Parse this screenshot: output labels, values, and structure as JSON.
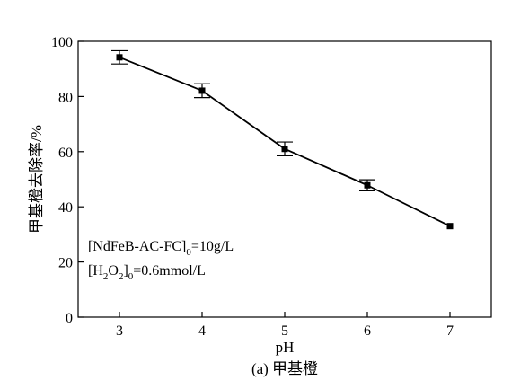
{
  "chart_data": {
    "type": "line",
    "x": [
      3,
      4,
      5,
      6,
      7
    ],
    "series": [
      {
        "values": [
          94.2,
          82.1,
          61.0,
          47.8,
          33.0
        ],
        "errors": [
          2.4,
          2.5,
          2.5,
          2.0,
          0
        ]
      }
    ],
    "xlabel": "pH",
    "ylabel": "甲基橙去除率/%",
    "xlim": [
      2.5,
      7.5
    ],
    "ylim": [
      0,
      100
    ],
    "xticks": [
      3,
      4,
      5,
      6,
      7
    ],
    "yticks": [
      0,
      20,
      40,
      60,
      80,
      100
    ],
    "grid": false,
    "annotations": [
      {
        "prefix": "[NdFeB-AC-FC]",
        "sub": "0",
        "suffix": "=10g/L"
      },
      {
        "parts": [
          "[H",
          "2",
          "O",
          "2",
          "]",
          "0",
          "=0.6mmol/L"
        ]
      }
    ],
    "caption": "(a) 甲基橙",
    "line_color": "#000000",
    "marker": "square"
  }
}
